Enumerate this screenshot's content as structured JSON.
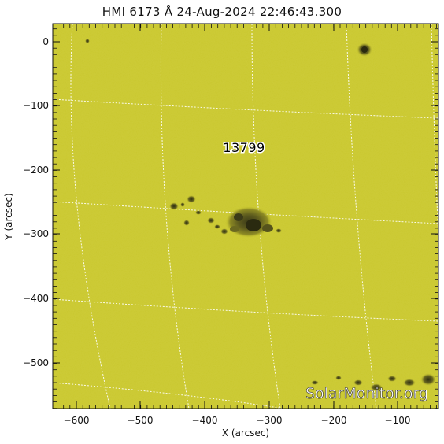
{
  "title": "HMI 6173 Å 24-Aug-2024 22:46:43.300",
  "x_axis": {
    "label": "X (arcsec)",
    "ticks": [
      "−600",
      "−500",
      "−400",
      "−300",
      "−200",
      "−100"
    ]
  },
  "y_axis": {
    "label": "Y (arcsec)",
    "ticks": [
      "0",
      "−100",
      "−200",
      "−300",
      "−400",
      "−500"
    ]
  },
  "region": {
    "label": "13799"
  },
  "watermark": "SolarMonitor.org",
  "colors": {
    "solar_disk": "#c9c72e",
    "spot": "#3a3a18",
    "grid": "#ffffff"
  }
}
